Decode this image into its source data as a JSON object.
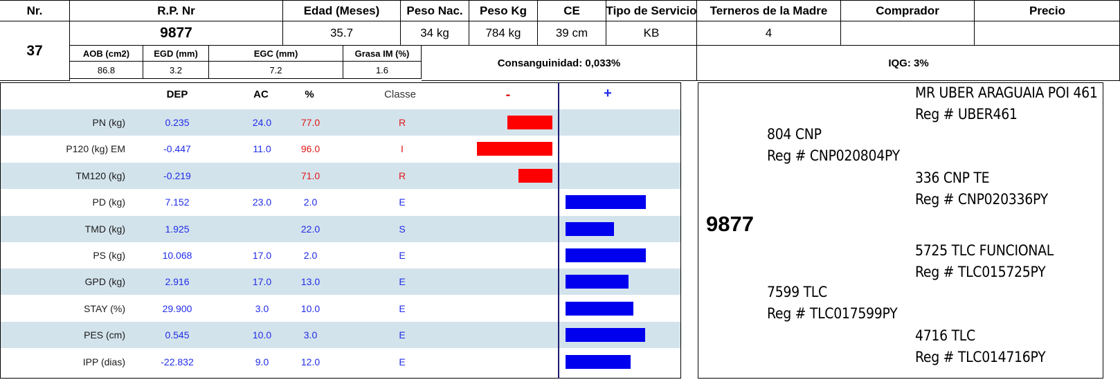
{
  "header": {
    "columns": [
      "Nr.",
      "R.P. Nr",
      "Edad (Meses)",
      "Peso Nac.",
      "Peso Kg",
      "CE",
      "Tipo de Servicio",
      "Terneros de la Madre",
      "Comprador",
      "Precio"
    ],
    "nr": "37",
    "rp_nr": "9877",
    "edad": "35.7",
    "peso_nac": "34 kg",
    "peso_kg": "784 kg",
    "ce": "39 cm",
    "tipo_servicio": "KB",
    "terneros_madre": "4",
    "comprador": "",
    "precio": "",
    "sub_columns": [
      "AOB (cm2)",
      "EGD (mm)",
      "EGC (mm)",
      "Grasa IM (%)"
    ],
    "sub_values": [
      "86.8",
      "3.2",
      "7.2",
      "1.6"
    ],
    "consanguinidad": "Consanguinidad: 0,033%",
    "iqg": "IQG: 3%"
  },
  "dep_table": {
    "headers": {
      "dep": "DEP",
      "ac": "AC",
      "pct": "%",
      "classe": "Classe",
      "neg": "-",
      "pos": "+"
    },
    "rows": [
      {
        "trait": "PN (kg)",
        "dep": "0.235",
        "ac": "24.0",
        "pct": "77.0",
        "classe": "R",
        "bad": true,
        "bar": 0.54
      },
      {
        "trait": "P120 (kg) EM",
        "dep": "-0.447",
        "ac": "11.0",
        "pct": "96.0",
        "classe": "I",
        "bad": true,
        "bar": 0.91
      },
      {
        "trait": "TM120 (kg)",
        "dep": "-0.219",
        "ac": "",
        "pct": "71.0",
        "classe": "R",
        "bad": true,
        "bar": 0.41
      },
      {
        "trait": "PD (kg)",
        "dep": "7.152",
        "ac": "23.0",
        "pct": "2.0",
        "classe": "E",
        "bad": false,
        "bar": 0.97
      },
      {
        "trait": "TMD (kg)",
        "dep": "1.925",
        "ac": "",
        "pct": "22.0",
        "classe": "S",
        "bad": false,
        "bar": 0.58
      },
      {
        "trait": "PS (kg)",
        "dep": "10.068",
        "ac": "17.0",
        "pct": "2.0",
        "classe": "E",
        "bad": false,
        "bar": 0.97
      },
      {
        "trait": "GPD (kg)",
        "dep": "2.916",
        "ac": "17.0",
        "pct": "13.0",
        "classe": "E",
        "bad": false,
        "bar": 0.76
      },
      {
        "trait": "STAY (%)",
        "dep": "29.900",
        "ac": "3.0",
        "pct": "10.0",
        "classe": "E",
        "bad": false,
        "bar": 0.82
      },
      {
        "trait": "PES (cm)",
        "dep": "0.545",
        "ac": "10.0",
        "pct": "3.0",
        "classe": "E",
        "bad": false,
        "bar": 0.96
      },
      {
        "trait": "IPP (dias)",
        "dep": "-22.832",
        "ac": "9.0",
        "pct": "12.0",
        "classe": "E",
        "bad": false,
        "bar": 0.78
      }
    ]
  },
  "pedigree": {
    "animal": "9877",
    "sire": "804 CNP",
    "sire_reg": "Reg # CNP020804PY",
    "sire_sire": "MR UBER ARAGUAIA POI 461",
    "sire_sire_reg": "Reg # UBER461",
    "sire_dam": "336 CNP TE",
    "sire_dam_reg": "Reg # CNP020336PY",
    "dam": "7599 TLC",
    "dam_reg": "Reg # TLC017599PY",
    "dam_sire": "5725 TLC FUNCIONAL",
    "dam_sire_reg": "Reg # TLC015725PY",
    "dam_dam": "4716 TLC",
    "dam_dam_reg": "Reg # TLC014716PY"
  },
  "colors": {
    "negative_bar": "#ff0000",
    "positive_bar": "#0000ee",
    "stripe": "#d3e3ec",
    "value_text": "#1f2be8",
    "bad_text": "#e01818"
  }
}
